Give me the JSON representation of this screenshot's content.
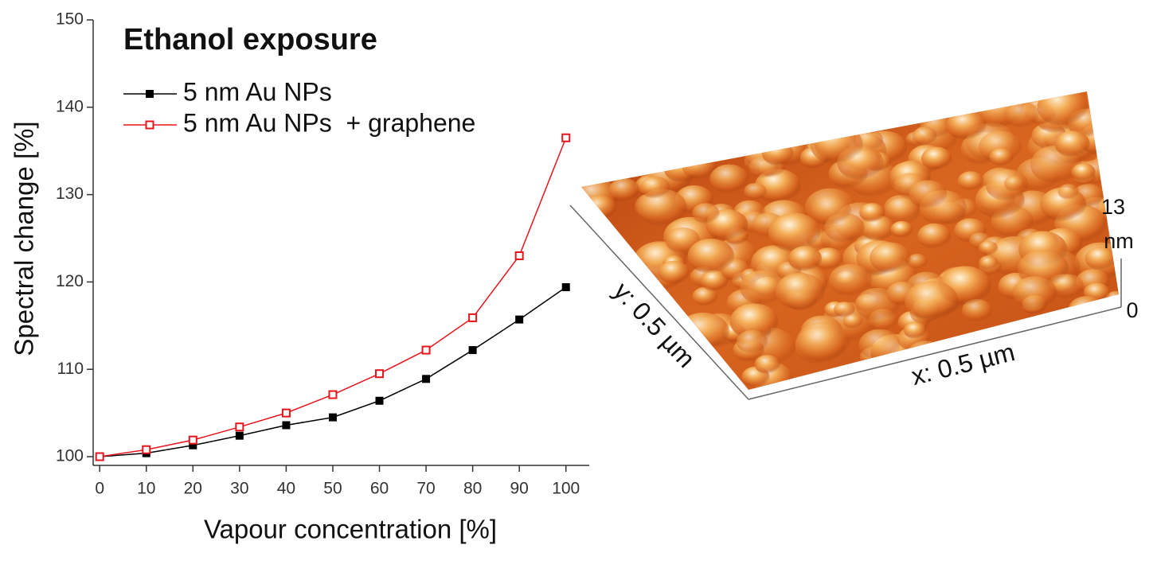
{
  "chart_data": {
    "type": "line",
    "title": "Ethanol exposure",
    "xlabel": "Vapour concentration [%]",
    "ylabel": "Spectral change [%]",
    "x": [
      0,
      10,
      20,
      30,
      40,
      50,
      60,
      70,
      80,
      90,
      100
    ],
    "series": [
      {
        "name": "5 nm Au NPs",
        "color": "#000000",
        "marker": "filled-square",
        "values": [
          100,
          100.4,
          101.3,
          102.4,
          103.6,
          104.5,
          106.4,
          108.9,
          112.2,
          115.7,
          119.4
        ]
      },
      {
        "name": "5 nm Au NPs  + graphene",
        "color": "#e8141c",
        "marker": "open-square",
        "values": [
          100,
          100.8,
          101.9,
          103.4,
          105.0,
          107.1,
          109.5,
          112.2,
          115.9,
          123.0,
          136.5
        ]
      }
    ],
    "xlim": [
      -1.4,
      105
    ],
    "ylim": [
      99,
      150
    ],
    "xticks": [
      0,
      10,
      20,
      30,
      40,
      50,
      60,
      70,
      80,
      90,
      100
    ],
    "yticks": [
      100,
      110,
      120,
      130,
      140,
      150
    ],
    "grid": false,
    "legend": "top-left"
  },
  "afm_image": {
    "x_label": "x: 0.5 µm",
    "y_label": "y: 0.5 µm",
    "scale_max": 13,
    "scale_unit": "nm",
    "scale_min": 0
  }
}
